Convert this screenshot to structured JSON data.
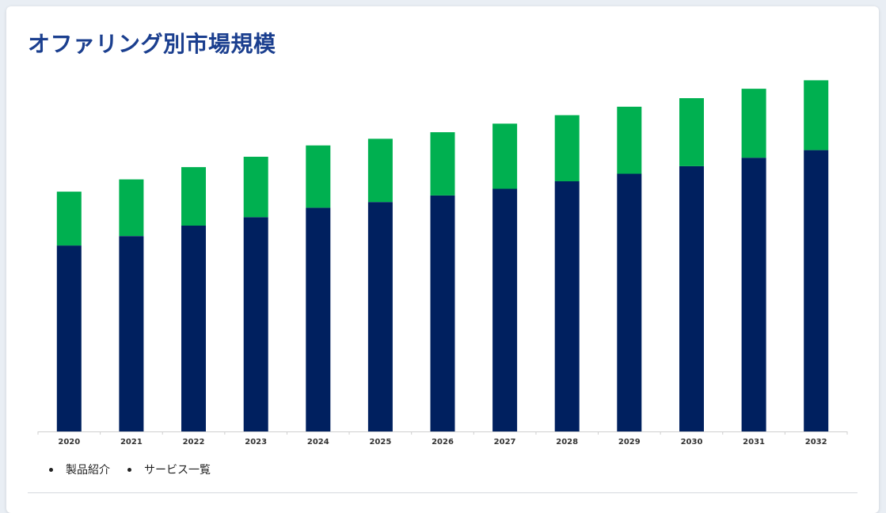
{
  "title": "オファリング別市場規模",
  "colors": {
    "products": "#00205f",
    "services": "#00b050",
    "title": "#1b3f8f"
  },
  "legend": {
    "items": [
      "製品紹介",
      "サービス一覧"
    ]
  },
  "chart_data": {
    "type": "bar",
    "stacked": true,
    "categories": [
      "2020",
      "2021",
      "2022",
      "2023",
      "2024",
      "2025",
      "2026",
      "2027",
      "2028",
      "2029",
      "2030",
      "2031",
      "2032"
    ],
    "series": [
      {
        "name": "製品紹介",
        "color": "#00205f",
        "values": [
          197,
          207,
          218,
          227,
          237,
          243,
          250,
          257,
          265,
          273,
          281,
          290,
          298
        ]
      },
      {
        "name": "サービス一覧",
        "color": "#00b050",
        "values": [
          57,
          60,
          62,
          64,
          66,
          67,
          67,
          69,
          70,
          71,
          72,
          73,
          74
        ]
      }
    ],
    "ylim": [
      0,
      400
    ],
    "grid": false,
    "legend_position": "bottom-left",
    "xlabel": "",
    "ylabel": ""
  }
}
